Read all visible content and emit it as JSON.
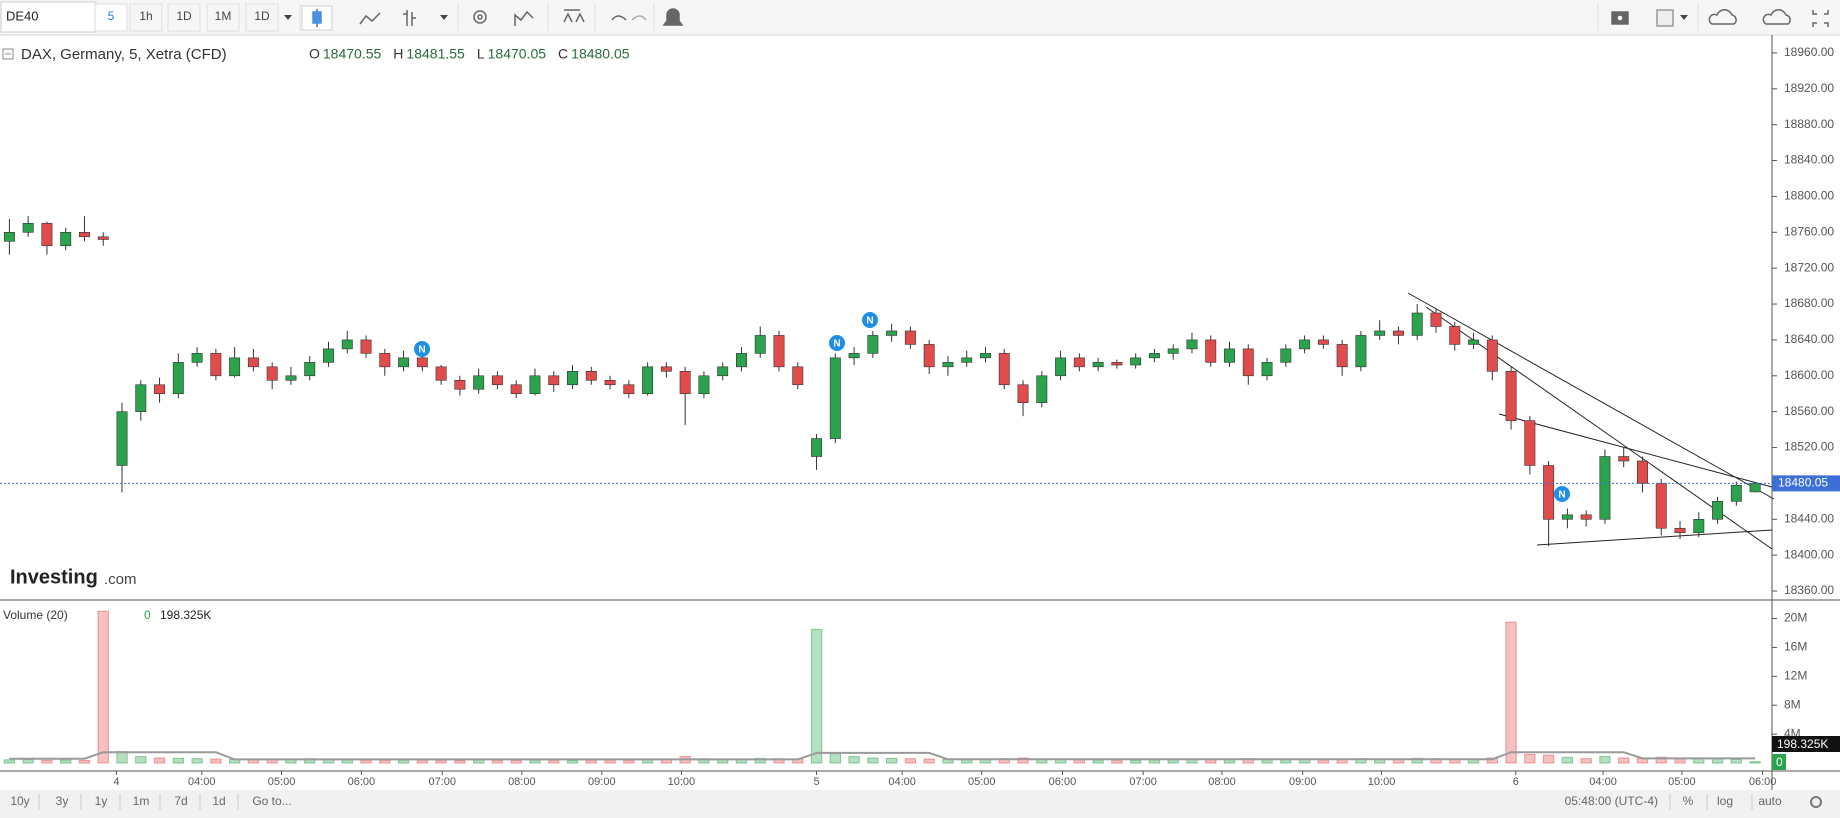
{
  "toolbar": {
    "symbol": "DE40",
    "intervals": [
      "5",
      "1h",
      "1D",
      "1M",
      "1D"
    ]
  },
  "legend": {
    "symbol": "DAX, Germany, 5, Xetra (CFD)",
    "items": [
      {
        "key": "O",
        "value": 18470.55
      },
      {
        "key": "H",
        "value": 18481.55
      },
      {
        "key": "L",
        "value": 18470.05
      },
      {
        "key": "C",
        "value": 18480.05
      }
    ]
  },
  "logo": {
    "name": "Investing",
    "suffix": ".com"
  },
  "markers": [
    "N",
    "N",
    "N",
    "N"
  ],
  "volume_legend": {
    "title": "Volume (20)",
    "ma": "0",
    "value": "198.325K"
  },
  "bottom_bar": {
    "ranges": [
      "10y",
      "3y",
      "1y",
      "1m",
      "7d",
      "1d",
      "Go to..."
    ],
    "clock": "05:48:00 (UTC-4)",
    "options": [
      "%",
      "log",
      "auto"
    ]
  },
  "chart_data": {
    "type": "candlestick",
    "colors": {
      "up": "#2ba24c",
      "down": "#e04b4b",
      "ma": "#9a9a9a",
      "last": "#3d6fd8"
    },
    "xlim": [
      -0.5,
      93.9
    ],
    "xticks": [
      {
        "value": 5.7,
        "label": "4"
      },
      {
        "value": 10.25,
        "label": "04:00"
      },
      {
        "value": 14.5,
        "label": "05:00"
      },
      {
        "value": 18.75,
        "label": "06:00"
      },
      {
        "value": 23.06,
        "label": "07:00"
      },
      {
        "value": 27.3,
        "label": "08:00"
      },
      {
        "value": 31.56,
        "label": "09:00"
      },
      {
        "value": 35.8,
        "label": "10:00"
      },
      {
        "value": 43,
        "label": "5"
      },
      {
        "value": 47.56,
        "label": "04:00"
      },
      {
        "value": 51.8,
        "label": "05:00"
      },
      {
        "value": 56.1,
        "label": "06:00"
      },
      {
        "value": 60.4,
        "label": "07:00"
      },
      {
        "value": 64.6,
        "label": "08:00"
      },
      {
        "value": 68.9,
        "label": "09:00"
      },
      {
        "value": 73.1,
        "label": "10:00"
      },
      {
        "value": 80.25,
        "label": "6"
      },
      {
        "value": 84.9,
        "label": "04:00"
      },
      {
        "value": 89.1,
        "label": "05:00"
      },
      {
        "value": 93.4,
        "label": "06:00"
      }
    ],
    "ylim": [
      18350,
      18980
    ],
    "yticks": [
      {
        "value": 18960,
        "label": "18960.00"
      },
      {
        "value": 18920,
        "label": "18920.00"
      },
      {
        "value": 18880,
        "label": "18880.00"
      },
      {
        "value": 18840,
        "label": "18840.00"
      },
      {
        "value": 18800,
        "label": "18800.00"
      },
      {
        "value": 18760,
        "label": "18760.00"
      },
      {
        "value": 18720,
        "label": "18720.00"
      },
      {
        "value": 18680,
        "label": "18680.00"
      },
      {
        "value": 18640,
        "label": "18640.00"
      },
      {
        "value": 18600,
        "label": "18600.00"
      },
      {
        "value": 18560,
        "label": "18560.00"
      },
      {
        "value": 18520,
        "label": "18520.00"
      },
      {
        "value": 18480,
        "label": "18480.00"
      },
      {
        "value": 18440,
        "label": "18440.00"
      },
      {
        "value": 18400,
        "label": "18400.00"
      },
      {
        "value": 18360,
        "label": "18360.00"
      }
    ],
    "candles": [
      [
        18750,
        18775,
        18735,
        18760
      ],
      [
        18760,
        18778,
        18755,
        18770
      ],
      [
        18770,
        18772,
        18735,
        18745
      ],
      [
        18745,
        18765,
        18740,
        18760
      ],
      [
        18760,
        18778,
        18750,
        18755
      ],
      [
        18755,
        18760,
        18745,
        18752
      ],
      [
        18500,
        18570,
        18470,
        18560
      ],
      [
        18560,
        18595,
        18550,
        18590
      ],
      [
        18590,
        18598,
        18570,
        18580
      ],
      [
        18580,
        18625,
        18575,
        18615
      ],
      [
        18615,
        18632,
        18610,
        18625
      ],
      [
        18625,
        18630,
        18595,
        18600
      ],
      [
        18600,
        18632,
        18598,
        18620
      ],
      [
        18620,
        18630,
        18605,
        18610
      ],
      [
        18610,
        18615,
        18585,
        18595
      ],
      [
        18595,
        18610,
        18590,
        18600
      ],
      [
        18600,
        18622,
        18595,
        18615
      ],
      [
        18615,
        18638,
        18610,
        18630
      ],
      [
        18630,
        18650,
        18625,
        18640
      ],
      [
        18640,
        18645,
        18620,
        18625
      ],
      [
        18625,
        18630,
        18600,
        18610
      ],
      [
        18610,
        18628,
        18605,
        18620
      ],
      [
        18620,
        18625,
        18605,
        18610
      ],
      [
        18610,
        18612,
        18590,
        18595
      ],
      [
        18595,
        18600,
        18578,
        18585
      ],
      [
        18585,
        18608,
        18580,
        18600
      ],
      [
        18600,
        18605,
        18585,
        18590
      ],
      [
        18590,
        18595,
        18575,
        18580
      ],
      [
        18580,
        18608,
        18578,
        18600
      ],
      [
        18600,
        18605,
        18582,
        18590
      ],
      [
        18590,
        18612,
        18585,
        18605
      ],
      [
        18605,
        18610,
        18590,
        18595
      ],
      [
        18595,
        18600,
        18585,
        18590
      ],
      [
        18590,
        18595,
        18575,
        18580
      ],
      [
        18580,
        18615,
        18578,
        18610
      ],
      [
        18610,
        18615,
        18598,
        18605
      ],
      [
        18605,
        18610,
        18545,
        18580
      ],
      [
        18580,
        18605,
        18575,
        18600
      ],
      [
        18600,
        18615,
        18595,
        18610
      ],
      [
        18610,
        18632,
        18605,
        18625
      ],
      [
        18625,
        18655,
        18620,
        18645
      ],
      [
        18645,
        18650,
        18605,
        18610
      ],
      [
        18610,
        18615,
        18585,
        18590
      ],
      [
        18510,
        18535,
        18495,
        18530
      ],
      [
        18530,
        18625,
        18525,
        18620
      ],
      [
        18620,
        18632,
        18612,
        18625
      ],
      [
        18625,
        18650,
        18620,
        18645
      ],
      [
        18645,
        18658,
        18638,
        18650
      ],
      [
        18650,
        18655,
        18630,
        18635
      ],
      [
        18635,
        18640,
        18602,
        18610
      ],
      [
        18610,
        18622,
        18600,
        18615
      ],
      [
        18615,
        18628,
        18610,
        18620
      ],
      [
        18620,
        18632,
        18615,
        18625
      ],
      [
        18625,
        18630,
        18585,
        18590
      ],
      [
        18590,
        18595,
        18555,
        18570
      ],
      [
        18570,
        18605,
        18565,
        18600
      ],
      [
        18600,
        18628,
        18595,
        18620
      ],
      [
        18620,
        18625,
        18605,
        18610
      ],
      [
        18610,
        18620,
        18605,
        18615
      ],
      [
        18615,
        18618,
        18608,
        18612
      ],
      [
        18612,
        18625,
        18608,
        18620
      ],
      [
        18620,
        18630,
        18615,
        18625
      ],
      [
        18625,
        18635,
        18618,
        18630
      ],
      [
        18630,
        18648,
        18625,
        18640
      ],
      [
        18640,
        18645,
        18610,
        18615
      ],
      [
        18615,
        18638,
        18610,
        18630
      ],
      [
        18630,
        18635,
        18590,
        18600
      ],
      [
        18600,
        18620,
        18595,
        18615
      ],
      [
        18615,
        18635,
        18610,
        18630
      ],
      [
        18630,
        18645,
        18625,
        18640
      ],
      [
        18640,
        18645,
        18630,
        18635
      ],
      [
        18635,
        18640,
        18600,
        18610
      ],
      [
        18610,
        18650,
        18605,
        18645
      ],
      [
        18645,
        18662,
        18640,
        18650
      ],
      [
        18650,
        18655,
        18635,
        18645
      ],
      [
        18645,
        18680,
        18640,
        18670
      ],
      [
        18670,
        18675,
        18648,
        18655
      ],
      [
        18655,
        18660,
        18628,
        18635
      ],
      [
        18635,
        18648,
        18630,
        18640
      ],
      [
        18640,
        18645,
        18595,
        18605
      ],
      [
        18605,
        18610,
        18540,
        18550
      ],
      [
        18550,
        18555,
        18490,
        18500
      ],
      [
        18500,
        18505,
        18410,
        18440
      ],
      [
        18440,
        18452,
        18430,
        18445
      ],
      [
        18445,
        18450,
        18432,
        18440
      ],
      [
        18440,
        18518,
        18435,
        18510
      ],
      [
        18510,
        18520,
        18498,
        18505
      ],
      [
        18505,
        18510,
        18470,
        18480
      ],
      [
        18480,
        18485,
        18422,
        18430
      ],
      [
        18430,
        18438,
        18418,
        18425
      ],
      [
        18425,
        18448,
        18420,
        18440
      ],
      [
        18440,
        18465,
        18435,
        18460
      ],
      [
        18460,
        18482,
        18455,
        18478
      ],
      [
        18470.55,
        18481.55,
        18470.05,
        18480.05
      ]
    ],
    "volume": {
      "ylim": [
        -1100000,
        22560000
      ],
      "yticks": [
        {
          "value": 20000000,
          "label": "20M"
        },
        {
          "value": 16000000,
          "label": "16M"
        },
        {
          "value": 12000000,
          "label": "12M"
        },
        {
          "value": 8000000,
          "label": "8M"
        },
        {
          "value": 4000000,
          "label": "4M"
        }
      ],
      "values": [
        450000,
        500000,
        380000,
        420000,
        360000,
        21000000,
        1600000,
        900000,
        700000,
        650000,
        600000,
        550000,
        500000,
        480000,
        450000,
        520000,
        600000,
        500000,
        450000,
        400000,
        380000,
        420000,
        400000,
        380000,
        350000,
        420000,
        380000,
        360000,
        400000,
        380000,
        350000,
        400000,
        420000,
        380000,
        450000,
        500000,
        900000,
        600000,
        550000,
        500000,
        650000,
        600000,
        550000,
        18500000,
        1300000,
        900000,
        700000,
        650000,
        600000,
        550000,
        500000,
        450000,
        480000,
        600000,
        700000,
        550000,
        500000,
        450000,
        420000,
        400000,
        380000,
        420000,
        450000,
        480000,
        500000,
        450000,
        600000,
        480000,
        450000,
        500000,
        420000,
        550000,
        600000,
        550000,
        500000,
        650000,
        600000,
        550000,
        500000,
        700000,
        19500000,
        1200000,
        1100000,
        800000,
        600000,
        900000,
        700000,
        650000,
        800000,
        700000,
        650000,
        600000,
        500000,
        198325
      ],
      "ma": [
        600000,
        600000,
        600000,
        600000,
        600000,
        1500000,
        1500000,
        1500000,
        1500000,
        1500000,
        1500000,
        1500000,
        500000,
        500000,
        500000,
        500000,
        500000,
        500000,
        500000,
        500000,
        500000,
        500000,
        500000,
        500000,
        500000,
        500000,
        500000,
        500000,
        500000,
        500000,
        500000,
        500000,
        500000,
        500000,
        500000,
        500000,
        500000,
        500000,
        500000,
        500000,
        500000,
        500000,
        500000,
        1400000,
        1400000,
        1400000,
        1400000,
        1400000,
        1400000,
        1400000,
        520000,
        520000,
        520000,
        520000,
        520000,
        520000,
        520000,
        520000,
        520000,
        520000,
        520000,
        520000,
        520000,
        520000,
        520000,
        520000,
        520000,
        520000,
        520000,
        520000,
        520000,
        520000,
        520000,
        520000,
        520000,
        520000,
        520000,
        520000,
        520000,
        520000,
        1500000,
        1500000,
        1500000,
        1500000,
        1500000,
        1500000,
        1500000,
        650000,
        650000,
        650000,
        650000,
        650000,
        650000,
        650000
      ]
    }
  }
}
